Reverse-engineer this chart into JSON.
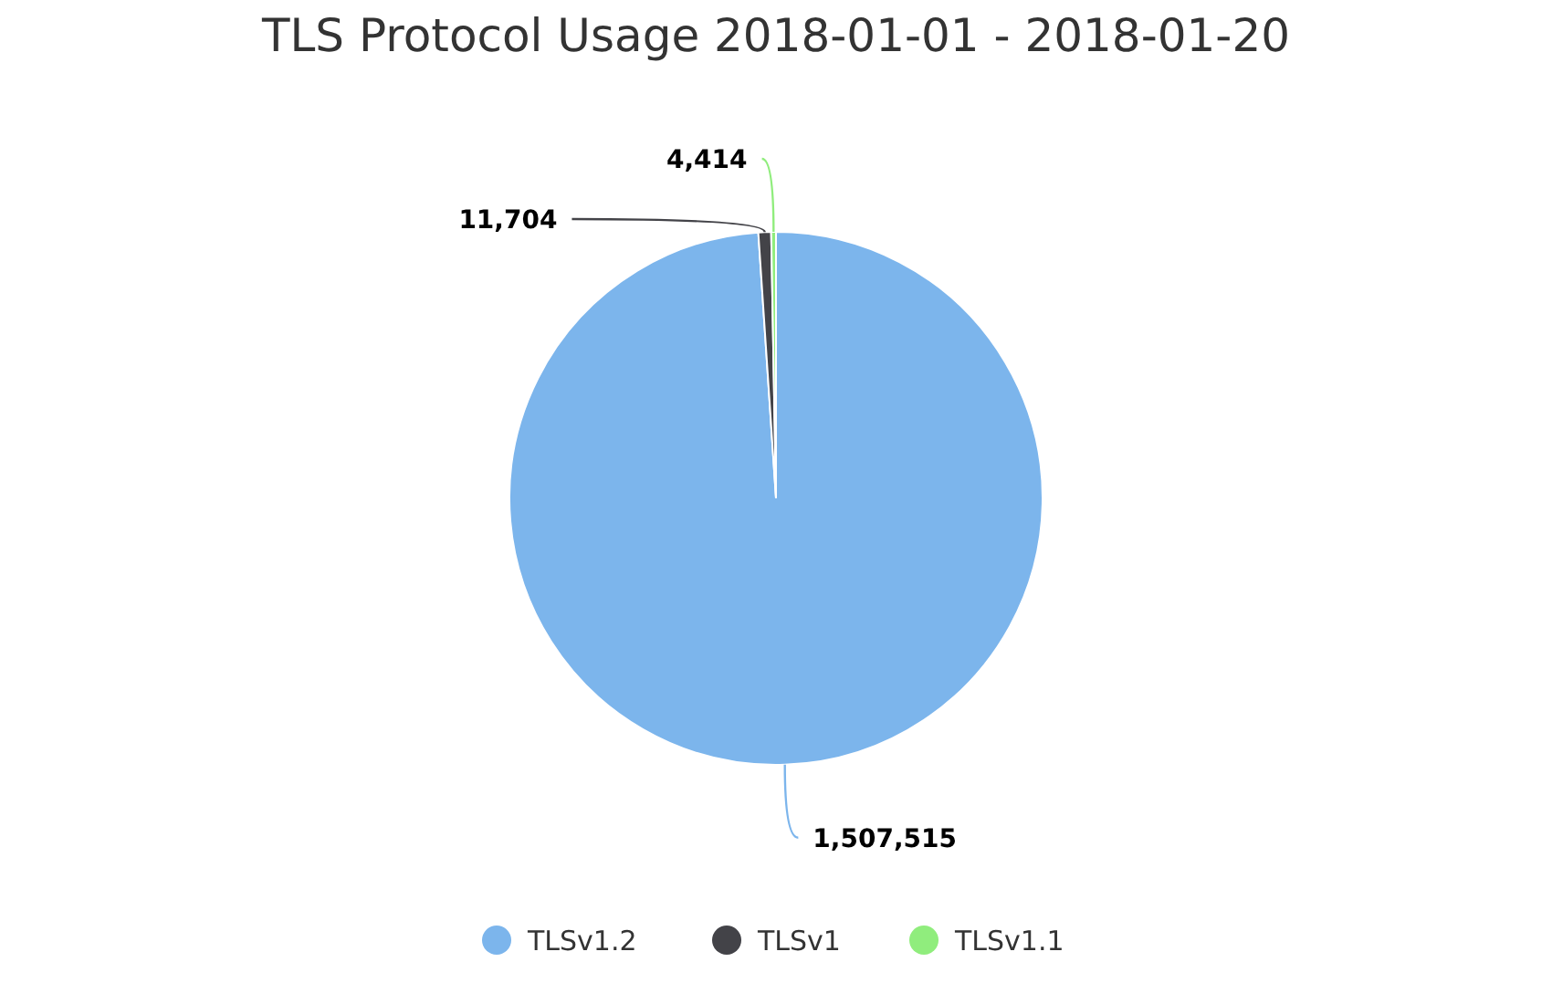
{
  "chart_data": {
    "type": "pie",
    "title": "TLS Protocol Usage 2018-01-01 - 2018-01-20",
    "categories": [
      "TLSv1.2",
      "TLSv1",
      "TLSv1.1"
    ],
    "values": [
      1507515,
      11704,
      4414
    ],
    "value_labels": [
      "1,507,515",
      "11,704",
      "4,414"
    ],
    "colors": [
      "#7cb5ec",
      "#434348",
      "#90ed7d"
    ],
    "legend": "bottom"
  }
}
